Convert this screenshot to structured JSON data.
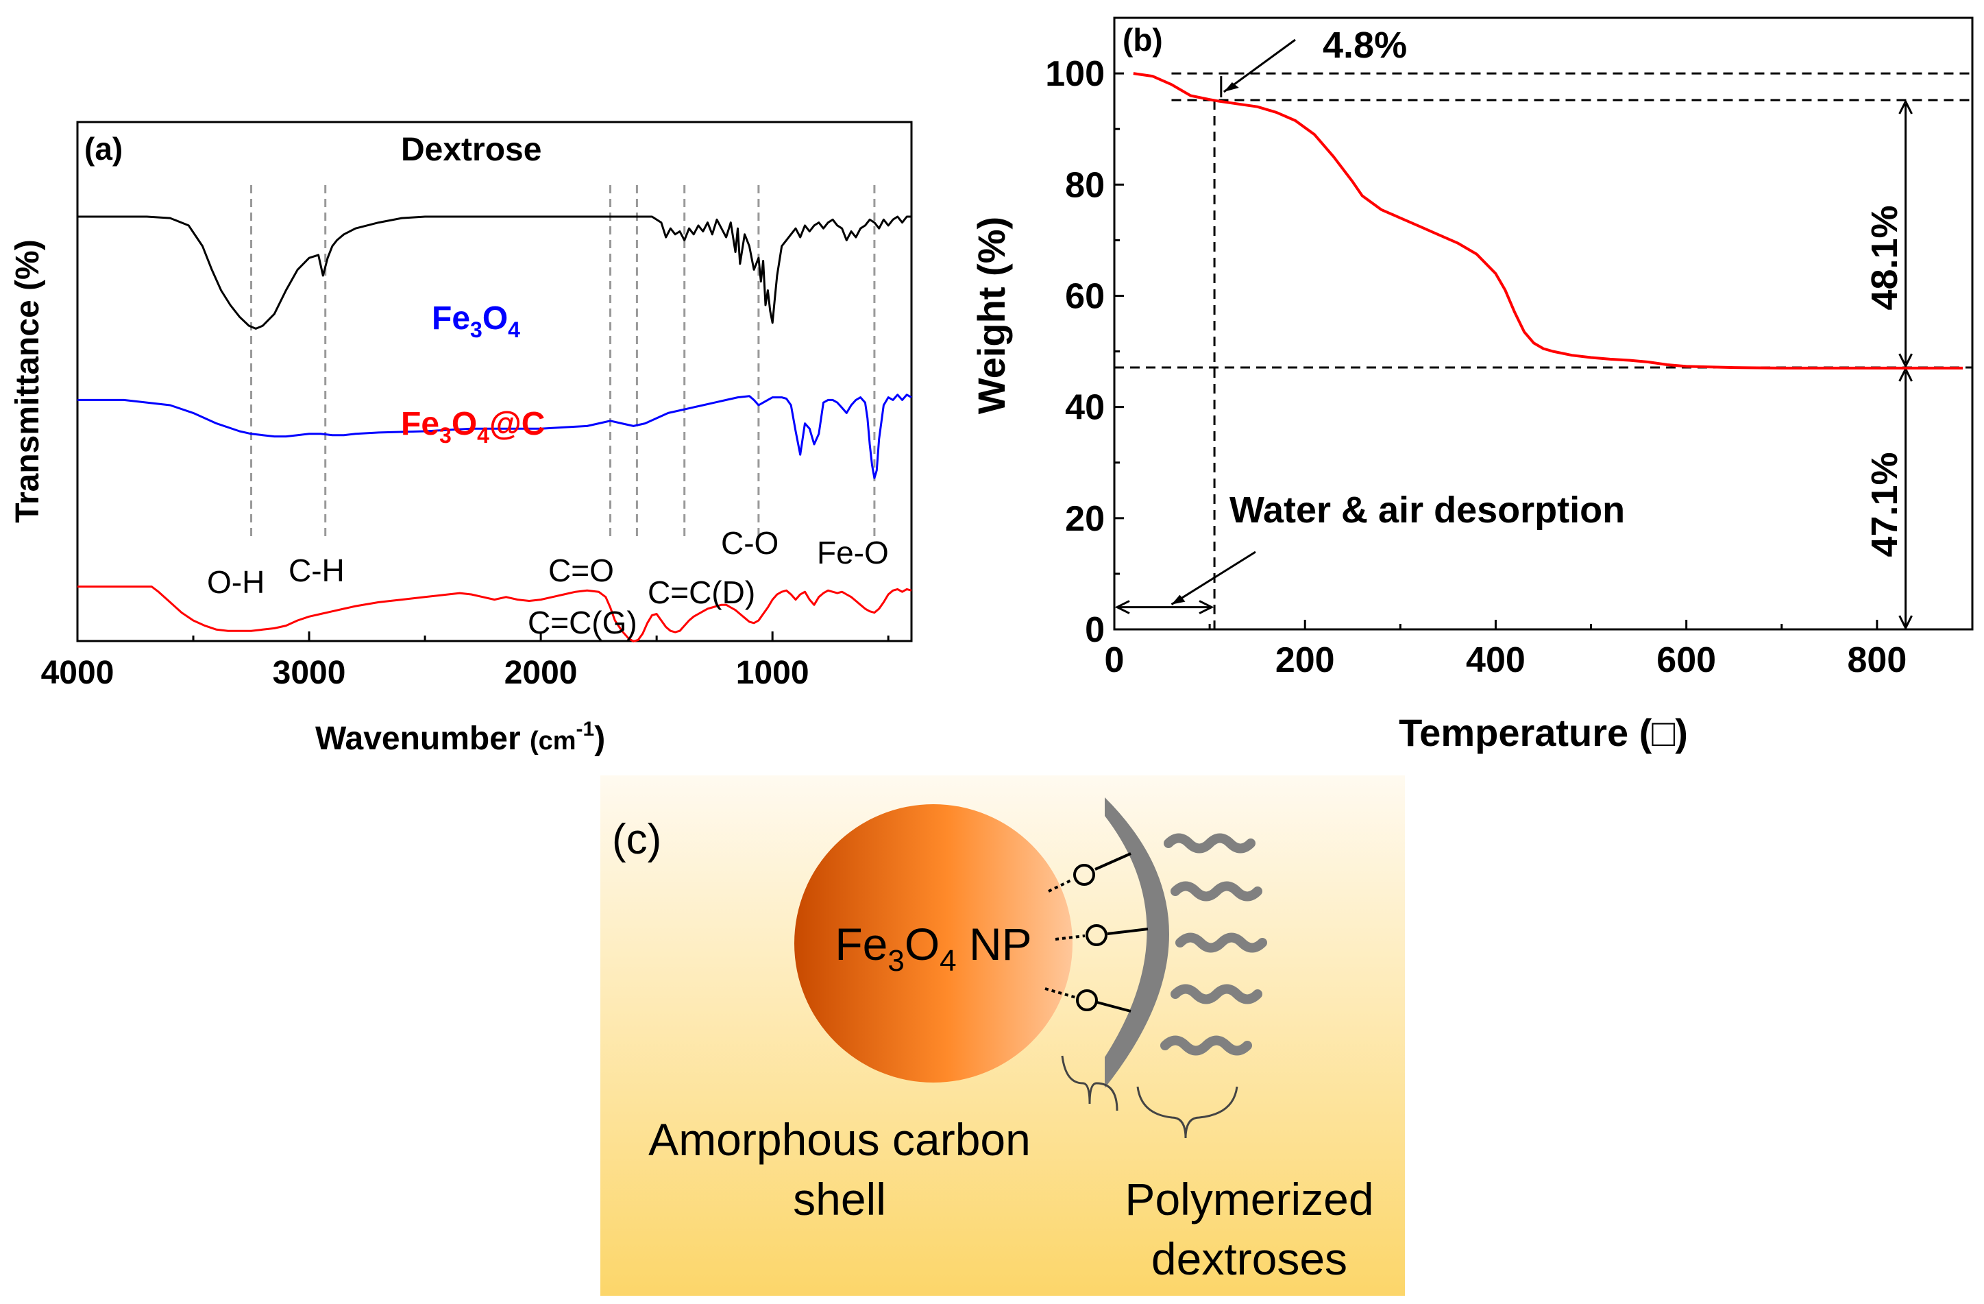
{
  "chart_data": [
    {
      "type": "line",
      "panel": "(a)",
      "xlabel": "Wavenumber (cm-1)",
      "xlabel_main": "Wavenumber ",
      "xlabel_unit_open": "(cm",
      "xlabel_unit_sup": "-1",
      "xlabel_unit_close": ")",
      "ylabel": "Transmittance (%)",
      "xlim": [
        4000,
        400
      ],
      "xticks": [
        "4000",
        "3000",
        "2000",
        "1000"
      ],
      "xtick_values": [
        4000,
        3000,
        2000,
        1000
      ],
      "series": [
        {
          "name": "Dextrose",
          "color": "#000000",
          "offset": 0.0,
          "x": [
            4000,
            3700,
            3600,
            3520,
            3460,
            3420,
            3380,
            3340,
            3300,
            3260,
            3230,
            3200,
            3150,
            3100,
            3050,
            3000,
            2960,
            2940,
            2920,
            2900,
            2880,
            2850,
            2800,
            2700,
            2600,
            2500,
            2400,
            2300,
            2200,
            2100,
            2000,
            1900,
            1800,
            1700,
            1600,
            1520,
            1480,
            1460,
            1440,
            1420,
            1400,
            1380,
            1360,
            1340,
            1320,
            1300,
            1280,
            1260,
            1240,
            1220,
            1200,
            1180,
            1160,
            1150,
            1140,
            1120,
            1100,
            1080,
            1060,
            1050,
            1040,
            1030,
            1020,
            1010,
            1000,
            990,
            980,
            960,
            940,
            920,
            900,
            880,
            860,
            840,
            820,
            800,
            780,
            760,
            740,
            720,
            700,
            680,
            660,
            640,
            620,
            600,
            580,
            560,
            540,
            520,
            500,
            480,
            460,
            440,
            420,
            400
          ],
          "y": [
            80,
            80,
            79.5,
            77,
            70,
            62,
            55,
            50,
            46,
            43,
            42,
            43,
            47,
            55,
            62,
            66,
            67,
            60,
            66,
            70,
            72,
            74,
            76,
            78,
            79.5,
            80,
            80,
            80,
            80,
            80,
            80,
            80,
            80,
            80,
            80,
            80,
            78,
            73,
            76,
            74,
            75,
            72,
            76,
            74,
            77,
            75,
            78,
            74,
            79,
            76,
            73,
            78,
            68,
            76,
            64,
            74,
            70,
            62,
            66,
            58,
            65,
            50,
            55,
            48,
            44,
            52,
            60,
            70,
            72,
            74,
            76,
            73,
            77,
            75,
            77,
            78,
            76,
            78,
            79,
            77,
            76,
            72,
            75,
            73,
            76,
            77,
            79,
            78,
            76,
            79,
            77,
            79,
            80,
            78,
            80,
            80
          ]
        },
        {
          "name": "Fe3O4",
          "color": "#0000ff",
          "offset": 0.0,
          "x": [
            4000,
            3800,
            3600,
            3500,
            3400,
            3300,
            3250,
            3200,
            3150,
            3100,
            3050,
            3000,
            2950,
            2900,
            2850,
            2800,
            2700,
            2500,
            2300,
            2100,
            2000,
            1900,
            1800,
            1750,
            1700,
            1650,
            1600,
            1550,
            1500,
            1450,
            1400,
            1350,
            1300,
            1250,
            1200,
            1150,
            1100,
            1080,
            1060,
            1040,
            1000,
            980,
            960,
            940,
            920,
            900,
            880,
            860,
            840,
            820,
            800,
            780,
            760,
            740,
            720,
            700,
            680,
            660,
            640,
            620,
            600,
            590,
            580,
            570,
            560,
            550,
            540,
            520,
            500,
            480,
            460,
            440,
            420,
            400
          ],
          "y": [
            57,
            57,
            55,
            52,
            48,
            45,
            44,
            43.5,
            43,
            43,
            43.5,
            44,
            44,
            43.5,
            43.5,
            44,
            44.5,
            45,
            46,
            46,
            46,
            46.5,
            47,
            48,
            49,
            48,
            47,
            48,
            50,
            52,
            53,
            54,
            55,
            56,
            57,
            58,
            58.5,
            57,
            55,
            56,
            58,
            58,
            58,
            57.5,
            55,
            45,
            36,
            48,
            46,
            40,
            44,
            56,
            57,
            57,
            56,
            54,
            52,
            55,
            57,
            58,
            56,
            50,
            40,
            32,
            27,
            30,
            42,
            55,
            58,
            57,
            59,
            57,
            59,
            58
          ]
        },
        {
          "name": "Fe3O4@C",
          "color": "#ff0000",
          "offset": 0.0,
          "x": [
            4000,
            3800,
            3680,
            3650,
            3600,
            3550,
            3500,
            3450,
            3400,
            3350,
            3300,
            3250,
            3200,
            3150,
            3100,
            3050,
            3000,
            2950,
            2900,
            2850,
            2800,
            2700,
            2600,
            2500,
            2400,
            2350,
            2300,
            2250,
            2200,
            2150,
            2100,
            2050,
            2000,
            1950,
            1900,
            1850,
            1800,
            1750,
            1720,
            1700,
            1680,
            1650,
            1620,
            1600,
            1580,
            1560,
            1540,
            1520,
            1500,
            1480,
            1460,
            1440,
            1420,
            1400,
            1380,
            1360,
            1340,
            1320,
            1300,
            1280,
            1260,
            1240,
            1220,
            1200,
            1180,
            1160,
            1140,
            1120,
            1100,
            1080,
            1060,
            1040,
            1020,
            1000,
            980,
            960,
            940,
            920,
            900,
            880,
            860,
            840,
            820,
            800,
            780,
            760,
            740,
            720,
            700,
            680,
            660,
            640,
            620,
            600,
            580,
            560,
            540,
            520,
            500,
            480,
            460,
            440,
            420,
            400
          ],
          "y": [
            38,
            38,
            38,
            36,
            32,
            28,
            25,
            23,
            21.5,
            21,
            21,
            21,
            21.5,
            22,
            23,
            25,
            26.5,
            27.5,
            28.5,
            29.5,
            30.5,
            32,
            33,
            34,
            35,
            35.5,
            35,
            34,
            33,
            34,
            33,
            32.5,
            33,
            34,
            35,
            36,
            36.5,
            36,
            34,
            30,
            25,
            21,
            18,
            17,
            17.5,
            20,
            24,
            27,
            27.5,
            25,
            22.5,
            21,
            20.5,
            21,
            23,
            25,
            26.5,
            27.5,
            28.5,
            29.5,
            30,
            30.5,
            31,
            31,
            30,
            29,
            27.5,
            26,
            24.5,
            24,
            25,
            27.5,
            30,
            33,
            35,
            36,
            36.5,
            35,
            33,
            35,
            36,
            33,
            31,
            34,
            35.5,
            36.5,
            36,
            35.5,
            36,
            35,
            34,
            32.5,
            31,
            29.5,
            28.5,
            28,
            29.5,
            32,
            35,
            36.5,
            37,
            36,
            37,
            36.5
          ]
        }
      ],
      "series_labels": {
        "dextrose": "Dextrose",
        "fe3o4_main": "Fe",
        "fe3o4_s1": "3",
        "fe3o4_o": "O",
        "fe3o4_s2": "4",
        "fe3o4c_main": "Fe",
        "fe3o4c_s1": "3",
        "fe3o4c_o": "O",
        "fe3o4c_s2": "4",
        "fe3o4c_tail": "@C"
      },
      "bands": [
        {
          "label": "O-H",
          "x": 3250
        },
        {
          "label": "C-H",
          "x": 2930
        },
        {
          "label": "C=O",
          "x": 1700
        },
        {
          "label": "C=C(G)",
          "x": 1585
        },
        {
          "label": "C=C(D)",
          "x": 1380
        },
        {
          "label": "C-O",
          "x": 1060
        },
        {
          "label": "Fe-O",
          "x": 560
        }
      ]
    },
    {
      "type": "line",
      "panel": "(b)",
      "xlabel": "Temperature (□)",
      "ylabel": "Weight (%)",
      "xlim": [
        0,
        900
      ],
      "ylim": [
        0,
        110
      ],
      "xticks": [
        "0",
        "200",
        "400",
        "600",
        "800"
      ],
      "xtick_values": [
        0,
        200,
        400,
        600,
        800
      ],
      "yticks": [
        "0",
        "20",
        "40",
        "60",
        "80",
        "100"
      ],
      "ytick_values": [
        0,
        20,
        40,
        60,
        80,
        100
      ],
      "series": [
        {
          "name": "TGA",
          "color": "#ff0000",
          "x": [
            20,
            40,
            60,
            80,
            100,
            110,
            130,
            150,
            170,
            190,
            210,
            230,
            250,
            260,
            280,
            300,
            320,
            340,
            360,
            380,
            400,
            410,
            420,
            430,
            440,
            450,
            460,
            480,
            500,
            520,
            540,
            560,
            580,
            600,
            650,
            700,
            750,
            800,
            850,
            890
          ],
          "y": [
            100,
            99.5,
            98,
            96,
            95.3,
            95.0,
            94.5,
            94,
            93,
            91.5,
            89,
            85,
            80.5,
            78,
            75.5,
            74,
            72.5,
            71,
            69.5,
            67.5,
            64,
            61,
            57,
            53.5,
            51.5,
            50.5,
            50,
            49.3,
            48.9,
            48.6,
            48.4,
            48.1,
            47.6,
            47.3,
            47.1,
            47.0,
            47.0,
            47.0,
            47.0,
            47.0
          ]
        }
      ],
      "annotations": {
        "loss1": "4.8%",
        "loss2": "48.1%",
        "residue": "47.1%",
        "desorption": "Water & air desorption",
        "level_top": 100,
        "level_mid": 95.2,
        "level_low": 47.1,
        "vline_x": 105,
        "bracket_x": 830
      }
    }
  ],
  "schematic": {
    "panel": "(c)",
    "core_main": "Fe",
    "core_s1": "3",
    "core_o": "O",
    "core_s2": "4",
    "core_tail": " NP",
    "shell_label_1": "Amorphous carbon",
    "shell_label_2": "shell",
    "dextrose_label_1": "Polymerized",
    "dextrose_label_2": "dextroses",
    "oxygen_symbol": "O",
    "colors": {
      "core_dark": "#c84a00",
      "core_mid": "#ff8a2a",
      "core_light": "#ffc79a",
      "shell": "#808080",
      "background_top": "#fffaf0",
      "background_bottom": "#fcd66a"
    }
  }
}
